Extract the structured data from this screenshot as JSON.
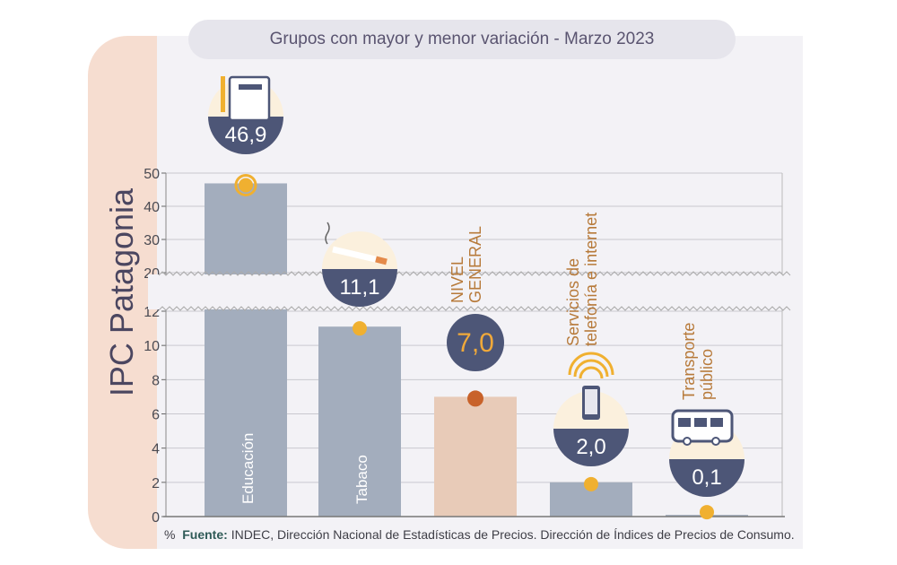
{
  "side_title": "IPC Patagonia",
  "title": "Grupos con mayor y menor variación - Marzo 2023",
  "footer": {
    "unit": "%",
    "source_label": "Fuente:",
    "source_text": "INDEC, Dirección Nacional de Estadísticas de Precios. Dirección de Índices de Precios de Consumo."
  },
  "colors": {
    "bar": "#a3adbd",
    "bar_general": "#e8cbb8",
    "badge_dark": "#4d5677",
    "badge_light": "#fbf0dd",
    "dot": "#f0b030",
    "dot_general": "#c8622a",
    "label": "#b77a3a",
    "value_general": "#f0a93a"
  },
  "chart_data": {
    "type": "bar",
    "title": "Grupos con mayor y menor variación - Marzo 2023",
    "ylabel": "%",
    "categories": [
      "Educación",
      "Tabaco",
      "NIVEL GENERAL",
      "Servicios de telefonía e internet",
      "Transporte público"
    ],
    "category_lines": [
      [
        "Educación"
      ],
      [
        "Tabaco"
      ],
      [
        "NIVEL",
        "GENERAL"
      ],
      [
        "Servicios  de",
        "telefonía e internet"
      ],
      [
        "Transporte",
        "público"
      ]
    ],
    "values": [
      46.9,
      11.1,
      7.0,
      2.0,
      0.1
    ],
    "value_labels": [
      "46,9",
      "11,1",
      "7,0",
      "2,0",
      "0,1"
    ],
    "icons": [
      "book-pencil-icon",
      "cigarette-icon",
      "",
      "smartphone-wifi-icon",
      "bus-icon"
    ],
    "yticks": [
      0,
      2,
      4,
      6,
      8,
      10,
      12,
      20,
      30,
      40,
      50
    ],
    "ylim": [
      0,
      50
    ],
    "axis_break": [
      12,
      20
    ],
    "grid": true
  }
}
